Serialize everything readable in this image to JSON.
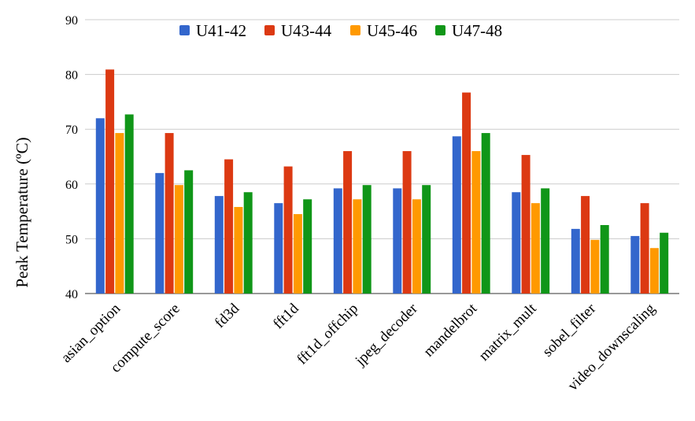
{
  "chart_data": {
    "type": "bar",
    "title": "",
    "xlabel": "",
    "ylabel": "Peak Temperature (ºC)",
    "ylim": [
      40,
      90
    ],
    "yticks": [
      40,
      50,
      60,
      70,
      80,
      90
    ],
    "grid": true,
    "legend_position": "top",
    "categories": [
      "asian_option",
      "compute_score",
      "fd3d",
      "fft1d",
      "fft1d_offchip",
      "jpeg_decoder",
      "mandelbrot",
      "matrix_mult",
      "sobel_filter",
      "video_downscaling"
    ],
    "series": [
      {
        "name": "U41-42",
        "color": "#3366cc",
        "values": [
          72.0,
          62.0,
          57.8,
          56.5,
          59.2,
          59.2,
          68.7,
          58.5,
          51.8,
          50.5
        ]
      },
      {
        "name": "U43-44",
        "color": "#dc3912",
        "values": [
          80.9,
          69.3,
          64.5,
          63.2,
          66.0,
          66.0,
          76.7,
          65.3,
          57.8,
          56.5
        ]
      },
      {
        "name": "U45-46",
        "color": "#ff9900",
        "values": [
          69.3,
          59.8,
          55.8,
          54.5,
          57.2,
          57.2,
          66.0,
          56.5,
          49.8,
          48.3
        ]
      },
      {
        "name": "U47-48",
        "color": "#109618",
        "values": [
          72.7,
          62.5,
          58.5,
          57.2,
          59.8,
          59.8,
          69.3,
          59.2,
          52.5,
          51.1
        ]
      }
    ]
  }
}
